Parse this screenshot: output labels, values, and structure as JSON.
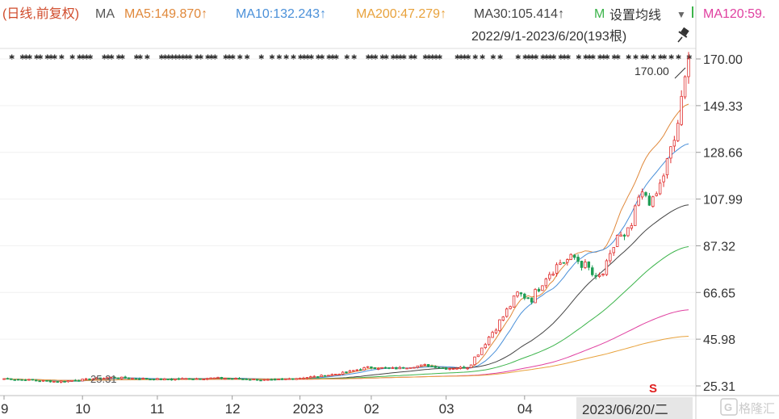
{
  "header": {
    "prefix": "(日线,前复权)",
    "ma_label": "MA",
    "items": [
      {
        "text": "MA5:149.870↑",
        "color": "#e0883a"
      },
      {
        "text": "MA10:132.243↑",
        "color": "#4a90d9"
      },
      {
        "text": "MA200:47.279↑",
        "color": "#e8a23c"
      },
      {
        "text": "MA30:105.414↑",
        "color": "#444444"
      },
      {
        "text": "M",
        "color": "#3cb44b"
      },
      {
        "text": "MA120:59.",
        "color": "#e040a0"
      }
    ],
    "settings_label": "设置均线",
    "settings_arrow": "▼",
    "range_label": "2022/9/1-2023/6/20(193根)",
    "pin_icon": "pin-icon"
  },
  "chart_data": {
    "type": "candlestick",
    "y_ticks": [
      "170.00",
      "149.33",
      "128.66",
      "107.99",
      "87.32",
      "66.65",
      "45.98",
      "25.31"
    ],
    "ylim": [
      25.31,
      170.0
    ],
    "x_ticks": [
      "9",
      "10",
      "11",
      "12",
      "2023",
      "02",
      "03",
      "04",
      "2023/06/20/二"
    ],
    "x_tick_positions": [
      0,
      22,
      43,
      64,
      83,
      103,
      124,
      146,
      192
    ],
    "bar_count": 193,
    "max_label": "170.00",
    "min_label": "25.31",
    "series": [
      {
        "name": "MA5",
        "color": "#e0883a"
      },
      {
        "name": "MA10",
        "color": "#4a90d9"
      },
      {
        "name": "MA30",
        "color": "#444444"
      },
      {
        "name": "MA60",
        "color": "#3cb44b"
      },
      {
        "name": "MA120",
        "color": "#e040a0"
      },
      {
        "name": "MA200",
        "color": "#e8a23c"
      }
    ],
    "close_anchors": [
      [
        0,
        28.5
      ],
      [
        15,
        27.2
      ],
      [
        30,
        29.0
      ],
      [
        45,
        28.2
      ],
      [
        60,
        28.8
      ],
      [
        75,
        27.8
      ],
      [
        88,
        29.5
      ],
      [
        95,
        31.0
      ],
      [
        102,
        33.5
      ],
      [
        110,
        33.0
      ],
      [
        118,
        34.5
      ],
      [
        124,
        33.0
      ],
      [
        130,
        33.5
      ],
      [
        133,
        40.0
      ],
      [
        136,
        47.0
      ],
      [
        140,
        56.0
      ],
      [
        144,
        66.0
      ],
      [
        148,
        64.0
      ],
      [
        152,
        74.0
      ],
      [
        156,
        80.0
      ],
      [
        160,
        82.0
      ],
      [
        164,
        77.0
      ],
      [
        166,
        72.0
      ],
      [
        168,
        75.0
      ],
      [
        170,
        82.0
      ],
      [
        172,
        92.0
      ],
      [
        174,
        90.0
      ],
      [
        176,
        96.0
      ],
      [
        178,
        108.0
      ],
      [
        180,
        110.0
      ],
      [
        182,
        106.0
      ],
      [
        184,
        114.0
      ],
      [
        186,
        124.0
      ],
      [
        188,
        134.0
      ],
      [
        190,
        150.0
      ],
      [
        192,
        170.0
      ]
    ],
    "ma_end_values": {
      "MA5": 149.87,
      "MA10": 132.243,
      "MA30": 105.414,
      "MA60": 87.0,
      "MA120": 59.0,
      "MA200": 47.279
    },
    "markers": {
      "top_row": "✱",
      "event_marker": "S"
    },
    "watermark": "格隆汇"
  }
}
